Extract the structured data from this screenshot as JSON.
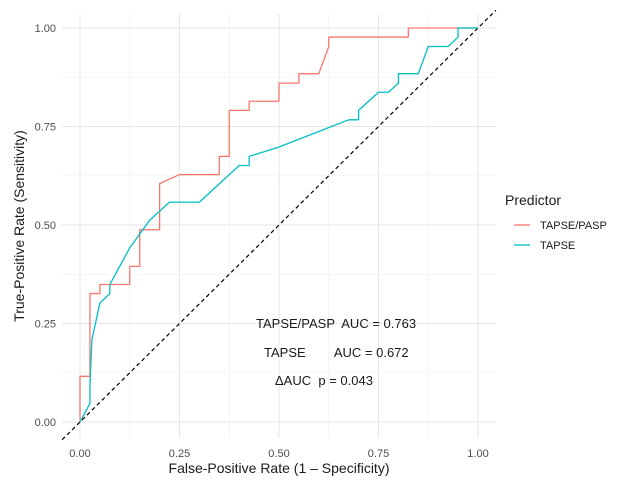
{
  "chart_data": {
    "type": "line",
    "title": "",
    "xlabel": "False-Positive Rate (1 – Specificity)",
    "ylabel": "True-Positive Rate (Sensitivity)",
    "xlim": [
      0,
      1
    ],
    "ylim": [
      0,
      1
    ],
    "x_ticks": [
      0,
      0.25,
      0.5,
      0.75,
      1
    ],
    "x_tick_labels": [
      "0.00",
      "0.25",
      "0.50",
      "0.75",
      "1.00"
    ],
    "y_ticks": [
      0,
      0.25,
      0.5,
      0.75,
      1
    ],
    "y_tick_labels": [
      "0.00",
      "0.25",
      "0.50",
      "0.75",
      "1.00"
    ],
    "grid": true,
    "legend": {
      "title": "Predictor",
      "position": "right"
    },
    "series": [
      {
        "name": "TAPSE/PASP",
        "color": "#F8766D",
        "points": [
          [
            0.0,
            0.0
          ],
          [
            0.0,
            0.116
          ],
          [
            0.025,
            0.116
          ],
          [
            0.025,
            0.326
          ],
          [
            0.05,
            0.326
          ],
          [
            0.05,
            0.349
          ],
          [
            0.125,
            0.349
          ],
          [
            0.125,
            0.395
          ],
          [
            0.15,
            0.395
          ],
          [
            0.15,
            0.488
          ],
          [
            0.2,
            0.488
          ],
          [
            0.2,
            0.605
          ],
          [
            0.25,
            0.628
          ],
          [
            0.35,
            0.628
          ],
          [
            0.35,
            0.674
          ],
          [
            0.375,
            0.674
          ],
          [
            0.375,
            0.791
          ],
          [
            0.425,
            0.791
          ],
          [
            0.425,
            0.814
          ],
          [
            0.5,
            0.814
          ],
          [
            0.5,
            0.86
          ],
          [
            0.55,
            0.86
          ],
          [
            0.55,
            0.884
          ],
          [
            0.6,
            0.884
          ],
          [
            0.625,
            0.953
          ],
          [
            0.625,
            0.977
          ],
          [
            0.825,
            0.977
          ],
          [
            0.825,
            1.0
          ],
          [
            1.0,
            1.0
          ]
        ]
      },
      {
        "name": "TAPSE",
        "color": "#00BFC4",
        "points": [
          [
            0.0,
            0.0
          ],
          [
            0.025,
            0.047
          ],
          [
            0.025,
            0.093
          ],
          [
            0.03,
            0.209
          ],
          [
            0.05,
            0.302
          ],
          [
            0.075,
            0.326
          ],
          [
            0.075,
            0.349
          ],
          [
            0.125,
            0.442
          ],
          [
            0.15,
            0.477
          ],
          [
            0.175,
            0.512
          ],
          [
            0.225,
            0.558
          ],
          [
            0.3,
            0.558
          ],
          [
            0.4,
            0.651
          ],
          [
            0.425,
            0.651
          ],
          [
            0.425,
            0.674
          ],
          [
            0.5,
            0.698
          ],
          [
            0.675,
            0.767
          ],
          [
            0.7,
            0.767
          ],
          [
            0.7,
            0.791
          ],
          [
            0.75,
            0.837
          ],
          [
            0.775,
            0.837
          ],
          [
            0.8,
            0.86
          ],
          [
            0.8,
            0.884
          ],
          [
            0.85,
            0.884
          ],
          [
            0.875,
            0.953
          ],
          [
            0.925,
            0.953
          ],
          [
            0.95,
            0.977
          ],
          [
            0.95,
            1.0
          ],
          [
            1.0,
            1.0
          ]
        ]
      }
    ],
    "reference_line": {
      "style": "dashed",
      "from": [
        0,
        0
      ],
      "to": [
        1,
        1
      ]
    },
    "annotations": [
      {
        "text": "TAPSE/PASP  AUC = 0.763"
      },
      {
        "text": "TAPSE        AUC = 0.672"
      },
      {
        "text": "ΔAUC  p = 0.043"
      }
    ]
  }
}
